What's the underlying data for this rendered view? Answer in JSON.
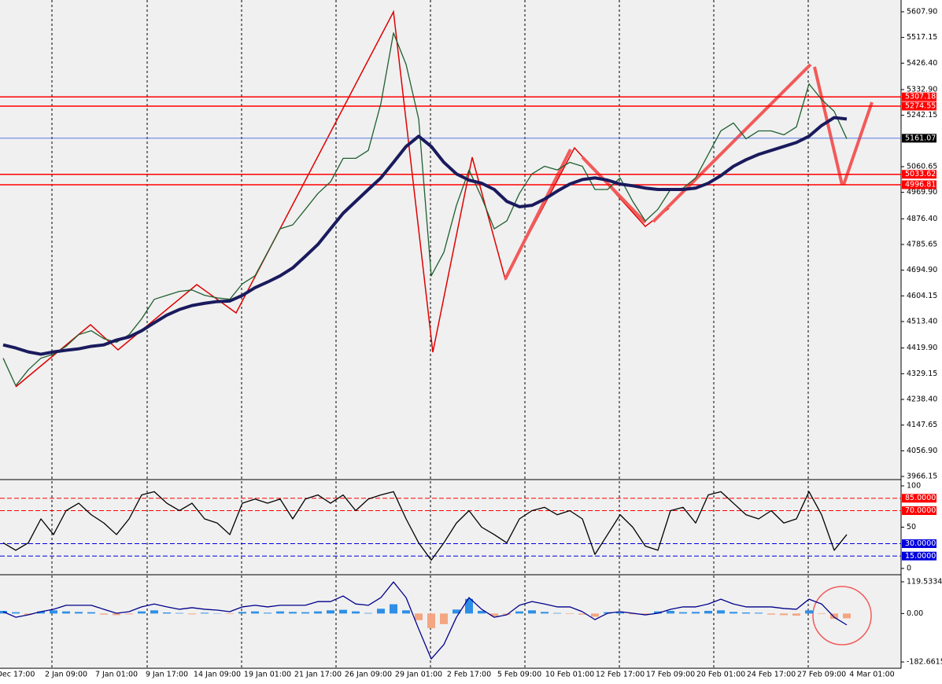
{
  "chart_data": [
    {
      "type": "line",
      "categories": [
        null,
        "Dec 17:00",
        null,
        null,
        null,
        "2 Jan 09:00",
        null,
        null,
        null,
        "7 Jan 01:00",
        null,
        null,
        null,
        "9 Jan 17:00",
        null,
        null,
        null,
        "14 Jan 09:00",
        null,
        null,
        null,
        "19 Jan 01:00",
        null,
        null,
        null,
        "21 Jan 17:00",
        null,
        null,
        null,
        "26 Jan 09:00",
        null,
        null,
        null,
        "29 Jan 01:00",
        null,
        null,
        null,
        "2 Feb 17:00",
        null,
        null,
        null,
        "5 Feb 09:00",
        null,
        null,
        null,
        "10 Feb 01:00",
        null,
        null,
        null,
        "12 Feb 17:00",
        null,
        null,
        null,
        "17 Feb 09:00",
        null,
        null,
        null,
        "20 Feb 01:00",
        null,
        null,
        null,
        "24 Feb 17:00",
        null,
        null,
        null,
        "27 Feb 09:00",
        null,
        null,
        null,
        "4 Mar 01:00"
      ],
      "series": [
        {
          "color": "#1f5f2f",
          "values": [
            4384,
            4287,
            4343,
            4384,
            4398,
            4426,
            4467,
            4481,
            4453,
            4440,
            4467,
            4523,
            4592,
            4606,
            4620,
            4625,
            4606,
            4597,
            4592,
            4647,
            4675,
            4758,
            4841,
            4855,
            4910,
            4966,
            5007,
            5090,
            5090,
            5118,
            5284,
            5533,
            5422,
            5229,
            4675,
            4758,
            4924,
            5049,
            4952,
            4841,
            4869,
            4966,
            5035,
            5062,
            5049,
            5076,
            5062,
            4980,
            4980,
            5021,
            4938,
            4869,
            4910,
            4980,
            4985,
            5021,
            5104,
            5187,
            5215,
            5159,
            5187,
            5187,
            5173,
            5201,
            5353,
            5298,
            5256,
            5159,
            null,
            null
          ]
        },
        {
          "color": "#1a1a5e",
          "values": [
            4431,
            4420,
            4406,
            4398,
            4406,
            4412,
            4417,
            4426,
            4431,
            4448,
            4459,
            4481,
            4509,
            4536,
            4556,
            4570,
            4578,
            4584,
            4586,
            4606,
            4633,
            4653,
            4675,
            4703,
            4744,
            4786,
            4841,
            4896,
            4938,
            4980,
            5021,
            5076,
            5132,
            5168,
            5132,
            5076,
            5035,
            5013,
            5002,
            4980,
            4938,
            4919,
            4924,
            4946,
            4974,
            4999,
            5015,
            5021,
            5013,
            4999,
            4993,
            4985,
            4980,
            4980,
            4980,
            4985,
            5002,
            5029,
            5062,
            5085,
            5104,
            5118,
            5132,
            5146,
            5168,
            5206,
            5234,
            5229,
            null,
            null
          ]
        }
      ],
      "ylim": [
        3960.6,
        5643.9
      ],
      "yticks": [
        {
          "value": 5607.9,
          "label": "5607.90"
        },
        5517.15,
        {
          "value": 5426.4,
          "label": "5426.40"
        },
        {
          "value": 5332.9,
          "label": "5332.90"
        },
        5242.15,
        5060.65,
        {
          "value": 4969.9,
          "label": "4969.90"
        },
        {
          "value": 4876.4,
          "label": "4876.40"
        },
        4785.65,
        {
          "value": 4694.9,
          "label": "4694.90"
        },
        4604.15,
        {
          "value": 4513.4,
          "label": "4513.40"
        },
        {
          "value": 4419.9,
          "label": "4419.90"
        },
        4329.15,
        {
          "value": 4238.4,
          "label": "4238.40"
        },
        4147.65,
        {
          "value": 4056.9,
          "label": "4056.90"
        },
        3966.15
      ],
      "hlines": [
        {
          "value": 5307.18,
          "label": "5307.18",
          "color": "#ff0000"
        },
        {
          "value": 5274.55,
          "label": "5274.55",
          "color": "#ff0000"
        },
        {
          "value": 5033.62,
          "label": "5033.62",
          "color": "#ff0000"
        },
        {
          "value": 4996.81,
          "label": "4996.81",
          "color": "#ff0000"
        }
      ],
      "last_price": 5161.07
    },
    {
      "type": "line",
      "series": [
        {
          "color": "#000000",
          "values": [
            31,
            22,
            31,
            60,
            41,
            70,
            79,
            65,
            55,
            41,
            60,
            89,
            93,
            79,
            70,
            79,
            60,
            55,
            41,
            79,
            84,
            79,
            84,
            60,
            84,
            89,
            79,
            89,
            70,
            84,
            89,
            93,
            60,
            31,
            10,
            31,
            55,
            70,
            50,
            41,
            31,
            60,
            70,
            74,
            65,
            70,
            60,
            17,
            41,
            65,
            50,
            27,
            22,
            70,
            74,
            55,
            89,
            93,
            79,
            65,
            60,
            70,
            55,
            60,
            93,
            65,
            22,
            41,
            null,
            null
          ]
        }
      ],
      "ylim": [
        -5.7,
        105.7
      ],
      "yticks": [
        100,
        50,
        0
      ],
      "hlines": [
        {
          "value": 85,
          "label": "85.0000",
          "color": "#ff0000"
        },
        {
          "value": 70,
          "label": "70.0000",
          "color": "#ff0000"
        },
        {
          "value": 30,
          "label": "30.0000",
          "color": "#0000dd"
        },
        {
          "value": 15,
          "label": "15.0000",
          "color": "#0000dd"
        }
      ]
    },
    {
      "type": "bar",
      "values": [
        10,
        5,
        -5,
        8,
        12,
        8,
        6,
        5,
        -4,
        -6,
        -3,
        8,
        12,
        4,
        2,
        -3,
        3,
        1,
        -2,
        6,
        8,
        3,
        8,
        6,
        5,
        8,
        12,
        14,
        8,
        2,
        18,
        35,
        12,
        -25,
        -55,
        -40,
        15,
        55,
        10,
        -10,
        -5,
        8,
        12,
        6,
        2,
        -2,
        -4,
        -12,
        5,
        4,
        -3,
        -4,
        8,
        10,
        5,
        6,
        10,
        12,
        6,
        4,
        3,
        -4,
        -6,
        -8,
        12,
        -2,
        -20,
        -18,
        null,
        null
      ],
      "color": "#2e8fe6",
      "negative_color": "#f4a582",
      "series": [
        {
          "color": "#00008b",
          "values": [
            7,
            -14,
            -5,
            7,
            16,
            31,
            31,
            31,
            16,
            1,
            7,
            25,
            36,
            25,
            16,
            22,
            16,
            13,
            7,
            25,
            31,
            25,
            31,
            31,
            31,
            45,
            45,
            66,
            36,
            31,
            60,
            119,
            60,
            -58,
            -171,
            -117,
            -14,
            60,
            16,
            -14,
            -5,
            31,
            45,
            36,
            25,
            25,
            7,
            -23,
            1,
            7,
            1,
            -5,
            1,
            16,
            25,
            25,
            36,
            54,
            36,
            25,
            25,
            25,
            19,
            16,
            54,
            36,
            -14,
            -43,
            null,
            null
          ]
        }
      ],
      "ylim": [
        -200.4,
        140.3
      ],
      "yticks": [
        119.5334,
        {
          "value": 0,
          "label": "0.00"
        },
        -182.6615
      ]
    }
  ]
}
